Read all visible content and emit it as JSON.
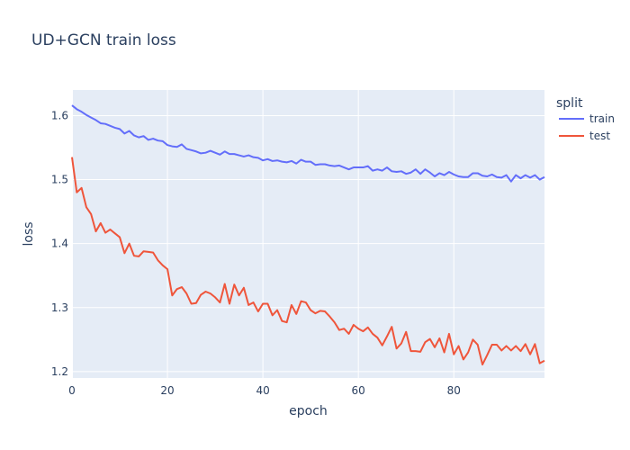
{
  "chart_data": {
    "type": "line",
    "title": "UD+GCN train loss",
    "xlabel": "epoch",
    "ylabel": "loss",
    "xlim": [
      0,
      99
    ],
    "ylim": [
      1.19,
      1.64
    ],
    "xticks": [
      0,
      20,
      40,
      60,
      80
    ],
    "yticks": [
      1.2,
      1.3,
      1.4,
      1.5,
      1.6
    ],
    "ytick_labels": [
      "1.2",
      "1.3",
      "1.4",
      "1.5",
      "1.6"
    ],
    "grid": true,
    "legend": {
      "title": "split",
      "position": "top-right"
    },
    "series": [
      {
        "name": "train",
        "color": "#636efa",
        "x": [
          0,
          1,
          2,
          3,
          4,
          5,
          6,
          7,
          8,
          9,
          10,
          11,
          12,
          13,
          14,
          15,
          16,
          17,
          18,
          19,
          20,
          21,
          22,
          23,
          24,
          25,
          26,
          27,
          28,
          29,
          30,
          31,
          32,
          33,
          34,
          35,
          36,
          37,
          38,
          39,
          40,
          41,
          42,
          43,
          44,
          45,
          46,
          47,
          48,
          49,
          50,
          51,
          52,
          53,
          54,
          55,
          56,
          57,
          58,
          59,
          60,
          61,
          62,
          63,
          64,
          65,
          66,
          67,
          68,
          69,
          70,
          71,
          72,
          73,
          74,
          75,
          76,
          77,
          78,
          79,
          80,
          81,
          82,
          83,
          84,
          85,
          86,
          87,
          88,
          89,
          90,
          91,
          92,
          93,
          94,
          95,
          96,
          97,
          98,
          99
        ],
        "values": [
          1.616,
          1.61,
          1.606,
          1.601,
          1.597,
          1.593,
          1.588,
          1.587,
          1.584,
          1.581,
          1.579,
          1.572,
          1.576,
          1.569,
          1.566,
          1.568,
          1.562,
          1.564,
          1.561,
          1.56,
          1.554,
          1.552,
          1.551,
          1.555,
          1.548,
          1.546,
          1.544,
          1.541,
          1.542,
          1.545,
          1.542,
          1.539,
          1.544,
          1.54,
          1.54,
          1.538,
          1.536,
          1.538,
          1.535,
          1.534,
          1.53,
          1.532,
          1.529,
          1.53,
          1.528,
          1.527,
          1.529,
          1.525,
          1.531,
          1.528,
          1.528,
          1.523,
          1.524,
          1.524,
          1.522,
          1.521,
          1.522,
          1.519,
          1.516,
          1.519,
          1.519,
          1.519,
          1.521,
          1.514,
          1.516,
          1.514,
          1.519,
          1.513,
          1.512,
          1.513,
          1.509,
          1.511,
          1.516,
          1.509,
          1.516,
          1.511,
          1.505,
          1.51,
          1.507,
          1.512,
          1.508,
          1.505,
          1.504,
          1.504,
          1.51,
          1.51,
          1.506,
          1.505,
          1.508,
          1.504,
          1.503,
          1.507,
          1.497,
          1.507,
          1.502,
          1.507,
          1.503,
          1.507,
          1.5,
          1.504
        ]
      },
      {
        "name": "test",
        "color": "#ef553b",
        "x": [
          0,
          1,
          2,
          3,
          4,
          5,
          6,
          7,
          8,
          9,
          10,
          11,
          12,
          13,
          14,
          15,
          16,
          17,
          18,
          19,
          20,
          21,
          22,
          23,
          24,
          25,
          26,
          27,
          28,
          29,
          30,
          31,
          32,
          33,
          34,
          35,
          36,
          37,
          38,
          39,
          40,
          41,
          42,
          43,
          44,
          45,
          46,
          47,
          48,
          49,
          50,
          51,
          52,
          53,
          54,
          55,
          56,
          57,
          58,
          59,
          60,
          61,
          62,
          63,
          64,
          65,
          66,
          67,
          68,
          69,
          70,
          71,
          72,
          73,
          74,
          75,
          76,
          77,
          78,
          79,
          80,
          81,
          82,
          83,
          84,
          85,
          86,
          87,
          88,
          89,
          90,
          91,
          92,
          93,
          94,
          95,
          96,
          97,
          98,
          99
        ],
        "values": [
          1.535,
          1.48,
          1.487,
          1.457,
          1.446,
          1.419,
          1.432,
          1.417,
          1.422,
          1.416,
          1.41,
          1.385,
          1.4,
          1.381,
          1.38,
          1.388,
          1.387,
          1.386,
          1.374,
          1.366,
          1.36,
          1.319,
          1.329,
          1.332,
          1.322,
          1.306,
          1.307,
          1.32,
          1.325,
          1.322,
          1.316,
          1.308,
          1.337,
          1.306,
          1.336,
          1.319,
          1.331,
          1.304,
          1.308,
          1.294,
          1.306,
          1.306,
          1.288,
          1.296,
          1.279,
          1.277,
          1.304,
          1.29,
          1.31,
          1.308,
          1.296,
          1.291,
          1.295,
          1.294,
          1.286,
          1.277,
          1.265,
          1.267,
          1.259,
          1.273,
          1.267,
          1.263,
          1.269,
          1.259,
          1.253,
          1.241,
          1.255,
          1.27,
          1.236,
          1.244,
          1.262,
          1.232,
          1.232,
          1.231,
          1.246,
          1.251,
          1.238,
          1.252,
          1.23,
          1.259,
          1.227,
          1.24,
          1.219,
          1.23,
          1.25,
          1.242,
          1.211,
          1.226,
          1.242,
          1.242,
          1.233,
          1.24,
          1.233,
          1.24,
          1.232,
          1.243,
          1.227,
          1.243,
          1.213,
          1.217
        ]
      }
    ]
  }
}
